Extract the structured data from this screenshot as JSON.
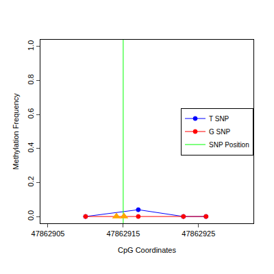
{
  "chart_data": {
    "type": "line",
    "x_label": "CpG Coordinates",
    "y_label": "Methylation Frequency",
    "xlim": [
      47862904,
      47862932.3
    ],
    "xticks": [
      47862905,
      47862915,
      47862925
    ],
    "ylim": [
      -0.04,
      1.04
    ],
    "yticks": [
      {
        "value": 0,
        "label": "0.0"
      },
      0.2,
      0.4,
      0.6,
      0.8,
      {
        "value": 1,
        "label": "1.0"
      }
    ],
    "grid": false,
    "legend": "right",
    "series": [
      {
        "name": "T SNP",
        "color": "#0000ff",
        "type": "line",
        "marker": "open-circle",
        "x": [
          47862910,
          47862917,
          47862923,
          47862926
        ],
        "values": [
          0,
          0.04,
          0,
          0
        ]
      },
      {
        "name": "G SNP",
        "color": "#ff0000",
        "type": "line",
        "marker": "open-circle",
        "x": [
          47862910,
          47862917,
          47862923,
          47862926
        ],
        "values": [
          0,
          0,
          0,
          0
        ]
      },
      {
        "name": "SNP Position",
        "color": "#00ff00",
        "type": "vline",
        "x": [
          47862915
        ]
      }
    ],
    "snp_markers": {
      "color": "#ffa500",
      "marker": "triangle-up",
      "x": [
        47862914.1,
        47862915.1
      ],
      "values": [
        0,
        0
      ]
    }
  }
}
